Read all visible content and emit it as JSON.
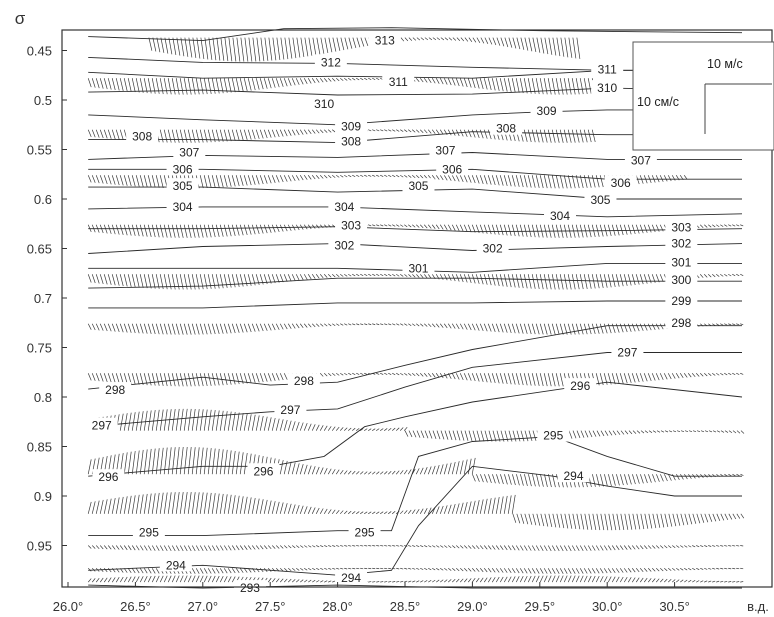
{
  "chart_data": {
    "type": "contour",
    "y_axis_symbol": "σ",
    "x_unit_label": "в.д.",
    "xlim": [
      26.0,
      31.0
    ],
    "ylim": [
      0.995,
      0.425
    ],
    "x_ticks": [
      {
        "value": 26.0,
        "label": "26.0°"
      },
      {
        "value": 26.5,
        "label": "26.5°"
      },
      {
        "value": 27.0,
        "label": "27.0°"
      },
      {
        "value": 27.5,
        "label": "27.5°"
      },
      {
        "value": 28.0,
        "label": "28.0°"
      },
      {
        "value": 28.5,
        "label": "28.5°"
      },
      {
        "value": 29.0,
        "label": "29.0°"
      },
      {
        "value": 29.5,
        "label": "29.5°"
      },
      {
        "value": 30.0,
        "label": "30.0°"
      },
      {
        "value": 30.5,
        "label": "30.5°"
      }
    ],
    "y_ticks": [
      {
        "value": 0.45,
        "label": "0.45"
      },
      {
        "value": 0.5,
        "label": "0.5"
      },
      {
        "value": 0.55,
        "label": "0.55"
      },
      {
        "value": 0.6,
        "label": "0.6"
      },
      {
        "value": 0.65,
        "label": "0.65"
      },
      {
        "value": 0.7,
        "label": "0.7"
      },
      {
        "value": 0.75,
        "label": "0.75"
      },
      {
        "value": 0.8,
        "label": "0.8"
      },
      {
        "value": 0.85,
        "label": "0.85"
      },
      {
        "value": 0.9,
        "label": "0.9"
      },
      {
        "value": 0.95,
        "label": "0.95"
      }
    ],
    "contours": [
      {
        "level": "313",
        "points": [
          [
            26.15,
            0.436
          ],
          [
            27.0,
            0.44
          ],
          [
            27.6,
            0.428
          ],
          [
            28.4,
            0.427
          ],
          [
            29.5,
            0.43
          ],
          [
            31.0,
            0.432
          ]
        ],
        "labels": [
          [
            28.35,
            0.44
          ]
        ]
      },
      {
        "level": "312",
        "points": [
          [
            26.15,
            0.457
          ],
          [
            27.0,
            0.462
          ],
          [
            28.0,
            0.463
          ],
          [
            29.0,
            0.467
          ],
          [
            30.0,
            0.47
          ],
          [
            31.0,
            0.47
          ]
        ],
        "labels": [
          [
            27.95,
            0.462
          ]
        ]
      },
      {
        "level": "311",
        "points": [
          [
            26.15,
            0.472
          ],
          [
            27.0,
            0.478
          ],
          [
            28.0,
            0.476
          ],
          [
            29.0,
            0.478
          ],
          [
            30.0,
            0.47
          ],
          [
            31.0,
            0.47
          ]
        ],
        "labels": [
          [
            28.45,
            0.482
          ],
          [
            30.0,
            0.469
          ]
        ]
      },
      {
        "level": "310",
        "points": [
          [
            26.15,
            0.492
          ],
          [
            27.0,
            0.49
          ],
          [
            28.0,
            0.495
          ],
          [
            29.0,
            0.494
          ],
          [
            30.0,
            0.488
          ],
          [
            31.0,
            0.49
          ]
        ],
        "labels": [
          [
            27.9,
            0.504
          ],
          [
            30.0,
            0.488
          ]
        ]
      },
      {
        "level": "309",
        "points": [
          [
            26.15,
            0.515
          ],
          [
            27.0,
            0.52
          ],
          [
            28.0,
            0.525
          ],
          [
            29.0,
            0.515
          ],
          [
            29.5,
            0.512
          ],
          [
            30.0,
            0.51
          ],
          [
            31.0,
            0.51
          ]
        ],
        "labels": [
          [
            28.1,
            0.527
          ],
          [
            29.55,
            0.511
          ]
        ]
      },
      {
        "level": "308",
        "points": [
          [
            26.15,
            0.54
          ],
          [
            27.0,
            0.54
          ],
          [
            28.0,
            0.543
          ],
          [
            29.0,
            0.532
          ],
          [
            30.0,
            0.535
          ],
          [
            31.0,
            0.535
          ]
        ],
        "labels": [
          [
            26.55,
            0.537
          ],
          [
            28.1,
            0.542
          ],
          [
            29.25,
            0.529
          ]
        ]
      },
      {
        "level": "307",
        "points": [
          [
            26.15,
            0.56
          ],
          [
            27.0,
            0.556
          ],
          [
            28.0,
            0.558
          ],
          [
            29.0,
            0.553
          ],
          [
            30.0,
            0.56
          ],
          [
            31.0,
            0.56
          ]
        ],
        "labels": [
          [
            26.9,
            0.553
          ],
          [
            28.8,
            0.551
          ],
          [
            30.25,
            0.561
          ]
        ]
      },
      {
        "level": "306",
        "points": [
          [
            26.15,
            0.57
          ],
          [
            27.0,
            0.57
          ],
          [
            28.0,
            0.573
          ],
          [
            29.0,
            0.57
          ],
          [
            30.0,
            0.58
          ],
          [
            31.0,
            0.58
          ]
        ],
        "labels": [
          [
            26.85,
            0.57
          ],
          [
            28.85,
            0.57
          ],
          [
            30.1,
            0.584
          ]
        ]
      },
      {
        "level": "305",
        "points": [
          [
            26.15,
            0.588
          ],
          [
            27.0,
            0.588
          ],
          [
            28.0,
            0.593
          ],
          [
            29.0,
            0.59
          ],
          [
            30.0,
            0.6
          ],
          [
            31.0,
            0.6
          ]
        ],
        "labels": [
          [
            26.85,
            0.587
          ],
          [
            28.6,
            0.587
          ],
          [
            29.95,
            0.601
          ]
        ]
      },
      {
        "level": "304",
        "points": [
          [
            26.15,
            0.61
          ],
          [
            27.0,
            0.608
          ],
          [
            28.0,
            0.608
          ],
          [
            29.0,
            0.613
          ],
          [
            30.0,
            0.618
          ],
          [
            31.0,
            0.615
          ]
        ],
        "labels": [
          [
            26.85,
            0.608
          ],
          [
            28.05,
            0.608
          ],
          [
            29.65,
            0.617
          ]
        ]
      },
      {
        "level": "303",
        "points": [
          [
            26.15,
            0.63
          ],
          [
            27.0,
            0.63
          ],
          [
            28.0,
            0.628
          ],
          [
            29.0,
            0.633
          ],
          [
            30.0,
            0.632
          ],
          [
            31.0,
            0.63
          ]
        ],
        "labels": [
          [
            28.1,
            0.627
          ],
          [
            30.55,
            0.629
          ]
        ]
      },
      {
        "level": "302",
        "points": [
          [
            26.15,
            0.655
          ],
          [
            27.0,
            0.648
          ],
          [
            28.0,
            0.645
          ],
          [
            29.0,
            0.652
          ],
          [
            30.0,
            0.648
          ],
          [
            31.0,
            0.645
          ]
        ],
        "labels": [
          [
            28.05,
            0.647
          ],
          [
            29.15,
            0.65
          ],
          [
            30.55,
            0.645
          ]
        ]
      },
      {
        "level": "301",
        "points": [
          [
            26.15,
            0.67
          ],
          [
            27.0,
            0.67
          ],
          [
            28.0,
            0.67
          ],
          [
            29.0,
            0.674
          ],
          [
            30.0,
            0.665
          ],
          [
            31.0,
            0.665
          ]
        ],
        "labels": [
          [
            28.6,
            0.67
          ],
          [
            30.55,
            0.664
          ]
        ]
      },
      {
        "level": "300",
        "points": [
          [
            26.15,
            0.69
          ],
          [
            27.0,
            0.688
          ],
          [
            28.0,
            0.68
          ],
          [
            29.0,
            0.68
          ],
          [
            30.0,
            0.683
          ],
          [
            31.0,
            0.683
          ]
        ],
        "labels": [
          [
            30.55,
            0.682
          ]
        ]
      },
      {
        "level": "299",
        "points": [
          [
            26.15,
            0.71
          ],
          [
            27.0,
            0.71
          ],
          [
            28.0,
            0.705
          ],
          [
            29.0,
            0.705
          ],
          [
            30.0,
            0.703
          ],
          [
            31.0,
            0.703
          ]
        ],
        "labels": [
          [
            30.55,
            0.703
          ]
        ]
      },
      {
        "level": "298",
        "points": [
          [
            26.15,
            0.792
          ],
          [
            27.0,
            0.78
          ],
          [
            27.5,
            0.788
          ],
          [
            28.0,
            0.785
          ],
          [
            28.5,
            0.768
          ],
          [
            29.0,
            0.752
          ],
          [
            30.0,
            0.728
          ],
          [
            31.0,
            0.728
          ]
        ],
        "labels": [
          [
            26.35,
            0.793
          ],
          [
            27.75,
            0.784
          ],
          [
            30.55,
            0.725
          ]
        ]
      },
      {
        "level": "297",
        "points": [
          [
            26.15,
            0.83
          ],
          [
            27.0,
            0.82
          ],
          [
            27.5,
            0.815
          ],
          [
            28.0,
            0.812
          ],
          [
            28.5,
            0.79
          ],
          [
            29.0,
            0.77
          ],
          [
            30.0,
            0.755
          ],
          [
            31.0,
            0.755
          ]
        ],
        "labels": [
          [
            26.25,
            0.829
          ],
          [
            27.65,
            0.813
          ],
          [
            30.15,
            0.755
          ]
        ]
      },
      {
        "level": "296",
        "points": [
          [
            26.15,
            0.88
          ],
          [
            27.0,
            0.87
          ],
          [
            27.5,
            0.87
          ],
          [
            27.9,
            0.86
          ],
          [
            28.2,
            0.83
          ],
          [
            28.5,
            0.82
          ],
          [
            29.0,
            0.805
          ],
          [
            30.0,
            0.785
          ],
          [
            31.0,
            0.8
          ]
        ],
        "labels": [
          [
            26.3,
            0.881
          ],
          [
            27.45,
            0.875
          ],
          [
            29.8,
            0.789
          ]
        ]
      },
      {
        "level": "295",
        "points": [
          [
            26.15,
            0.94
          ],
          [
            27.0,
            0.94
          ],
          [
            28.0,
            0.935
          ],
          [
            28.4,
            0.935
          ],
          [
            28.6,
            0.86
          ],
          [
            29.0,
            0.845
          ],
          [
            29.6,
            0.84
          ],
          [
            30.0,
            0.86
          ],
          [
            30.5,
            0.88
          ],
          [
            31.0,
            0.88
          ]
        ],
        "labels": [
          [
            26.6,
            0.937
          ],
          [
            28.2,
            0.937
          ],
          [
            29.6,
            0.839
          ]
        ]
      },
      {
        "level": "294",
        "points": [
          [
            26.15,
            0.975
          ],
          [
            27.0,
            0.97
          ],
          [
            28.0,
            0.98
          ],
          [
            28.4,
            0.975
          ],
          [
            28.6,
            0.93
          ],
          [
            29.0,
            0.87
          ],
          [
            29.6,
            0.88
          ],
          [
            30.0,
            0.89
          ],
          [
            30.5,
            0.9
          ],
          [
            31.0,
            0.9
          ]
        ],
        "labels": [
          [
            26.8,
            0.97
          ],
          [
            28.1,
            0.983
          ],
          [
            29.75,
            0.88
          ]
        ]
      },
      {
        "level": "293",
        "points": [
          [
            26.15,
            0.99
          ],
          [
            27.0,
            0.993
          ],
          [
            28.0,
            0.99
          ],
          [
            29.0,
            0.993
          ],
          [
            31.0,
            0.993
          ]
        ],
        "labels": [
          [
            27.35,
            0.993
          ]
        ]
      }
    ],
    "vector_rows": [
      {
        "sigma": 0.437,
        "amp": 0.022,
        "dir": "down",
        "x_from": 26.6,
        "x_to": 29.8
      },
      {
        "sigma": 0.478,
        "amp": 0.015,
        "dir": "down",
        "x_from": 26.15,
        "x_to": 29.9
      },
      {
        "sigma": 0.53,
        "amp": 0.012,
        "dir": "down",
        "x_from": 26.15,
        "x_to": 29.9
      },
      {
        "sigma": 0.576,
        "amp": 0.012,
        "dir": "down",
        "x_from": 26.15,
        "x_to": 30.6
      },
      {
        "sigma": 0.626,
        "amp": 0.012,
        "dir": "down",
        "x_from": 26.15,
        "x_to": 31.0
      },
      {
        "sigma": 0.676,
        "amp": 0.014,
        "dir": "down",
        "x_from": 26.15,
        "x_to": 31.0
      },
      {
        "sigma": 0.726,
        "amp": 0.01,
        "dir": "down",
        "x_from": 26.15,
        "x_to": 31.0
      },
      {
        "sigma": 0.776,
        "amp": 0.012,
        "dir": "down",
        "x_from": 26.15,
        "x_to": 31.0
      },
      {
        "sigma": 0.834,
        "amp": 0.02,
        "dir": "up",
        "x_from": 26.15,
        "x_to": 28.5
      },
      {
        "sigma": 0.834,
        "amp": 0.01,
        "dir": "down",
        "x_from": 28.5,
        "x_to": 31.0
      },
      {
        "sigma": 0.878,
        "amp": 0.025,
        "dir": "up",
        "x_from": 26.15,
        "x_to": 29.0
      },
      {
        "sigma": 0.878,
        "amp": 0.012,
        "dir": "down",
        "x_from": 29.0,
        "x_to": 31.0
      },
      {
        "sigma": 0.918,
        "amp": 0.02,
        "dir": "up",
        "x_from": 26.15,
        "x_to": 29.3
      },
      {
        "sigma": 0.918,
        "amp": 0.015,
        "dir": "down",
        "x_from": 29.3,
        "x_to": 31.0
      },
      {
        "sigma": 0.95,
        "amp": 0.005,
        "dir": "down",
        "x_from": 26.15,
        "x_to": 31.0
      },
      {
        "sigma": 0.973,
        "amp": 0.005,
        "dir": "down",
        "x_from": 26.15,
        "x_to": 31.0
      },
      {
        "sigma": 0.987,
        "amp": 0.006,
        "dir": "up",
        "x_from": 26.15,
        "x_to": 31.0
      }
    ],
    "scale_box": {
      "horizontal_label": "10 м/с",
      "vertical_label": "10 см/с"
    }
  }
}
